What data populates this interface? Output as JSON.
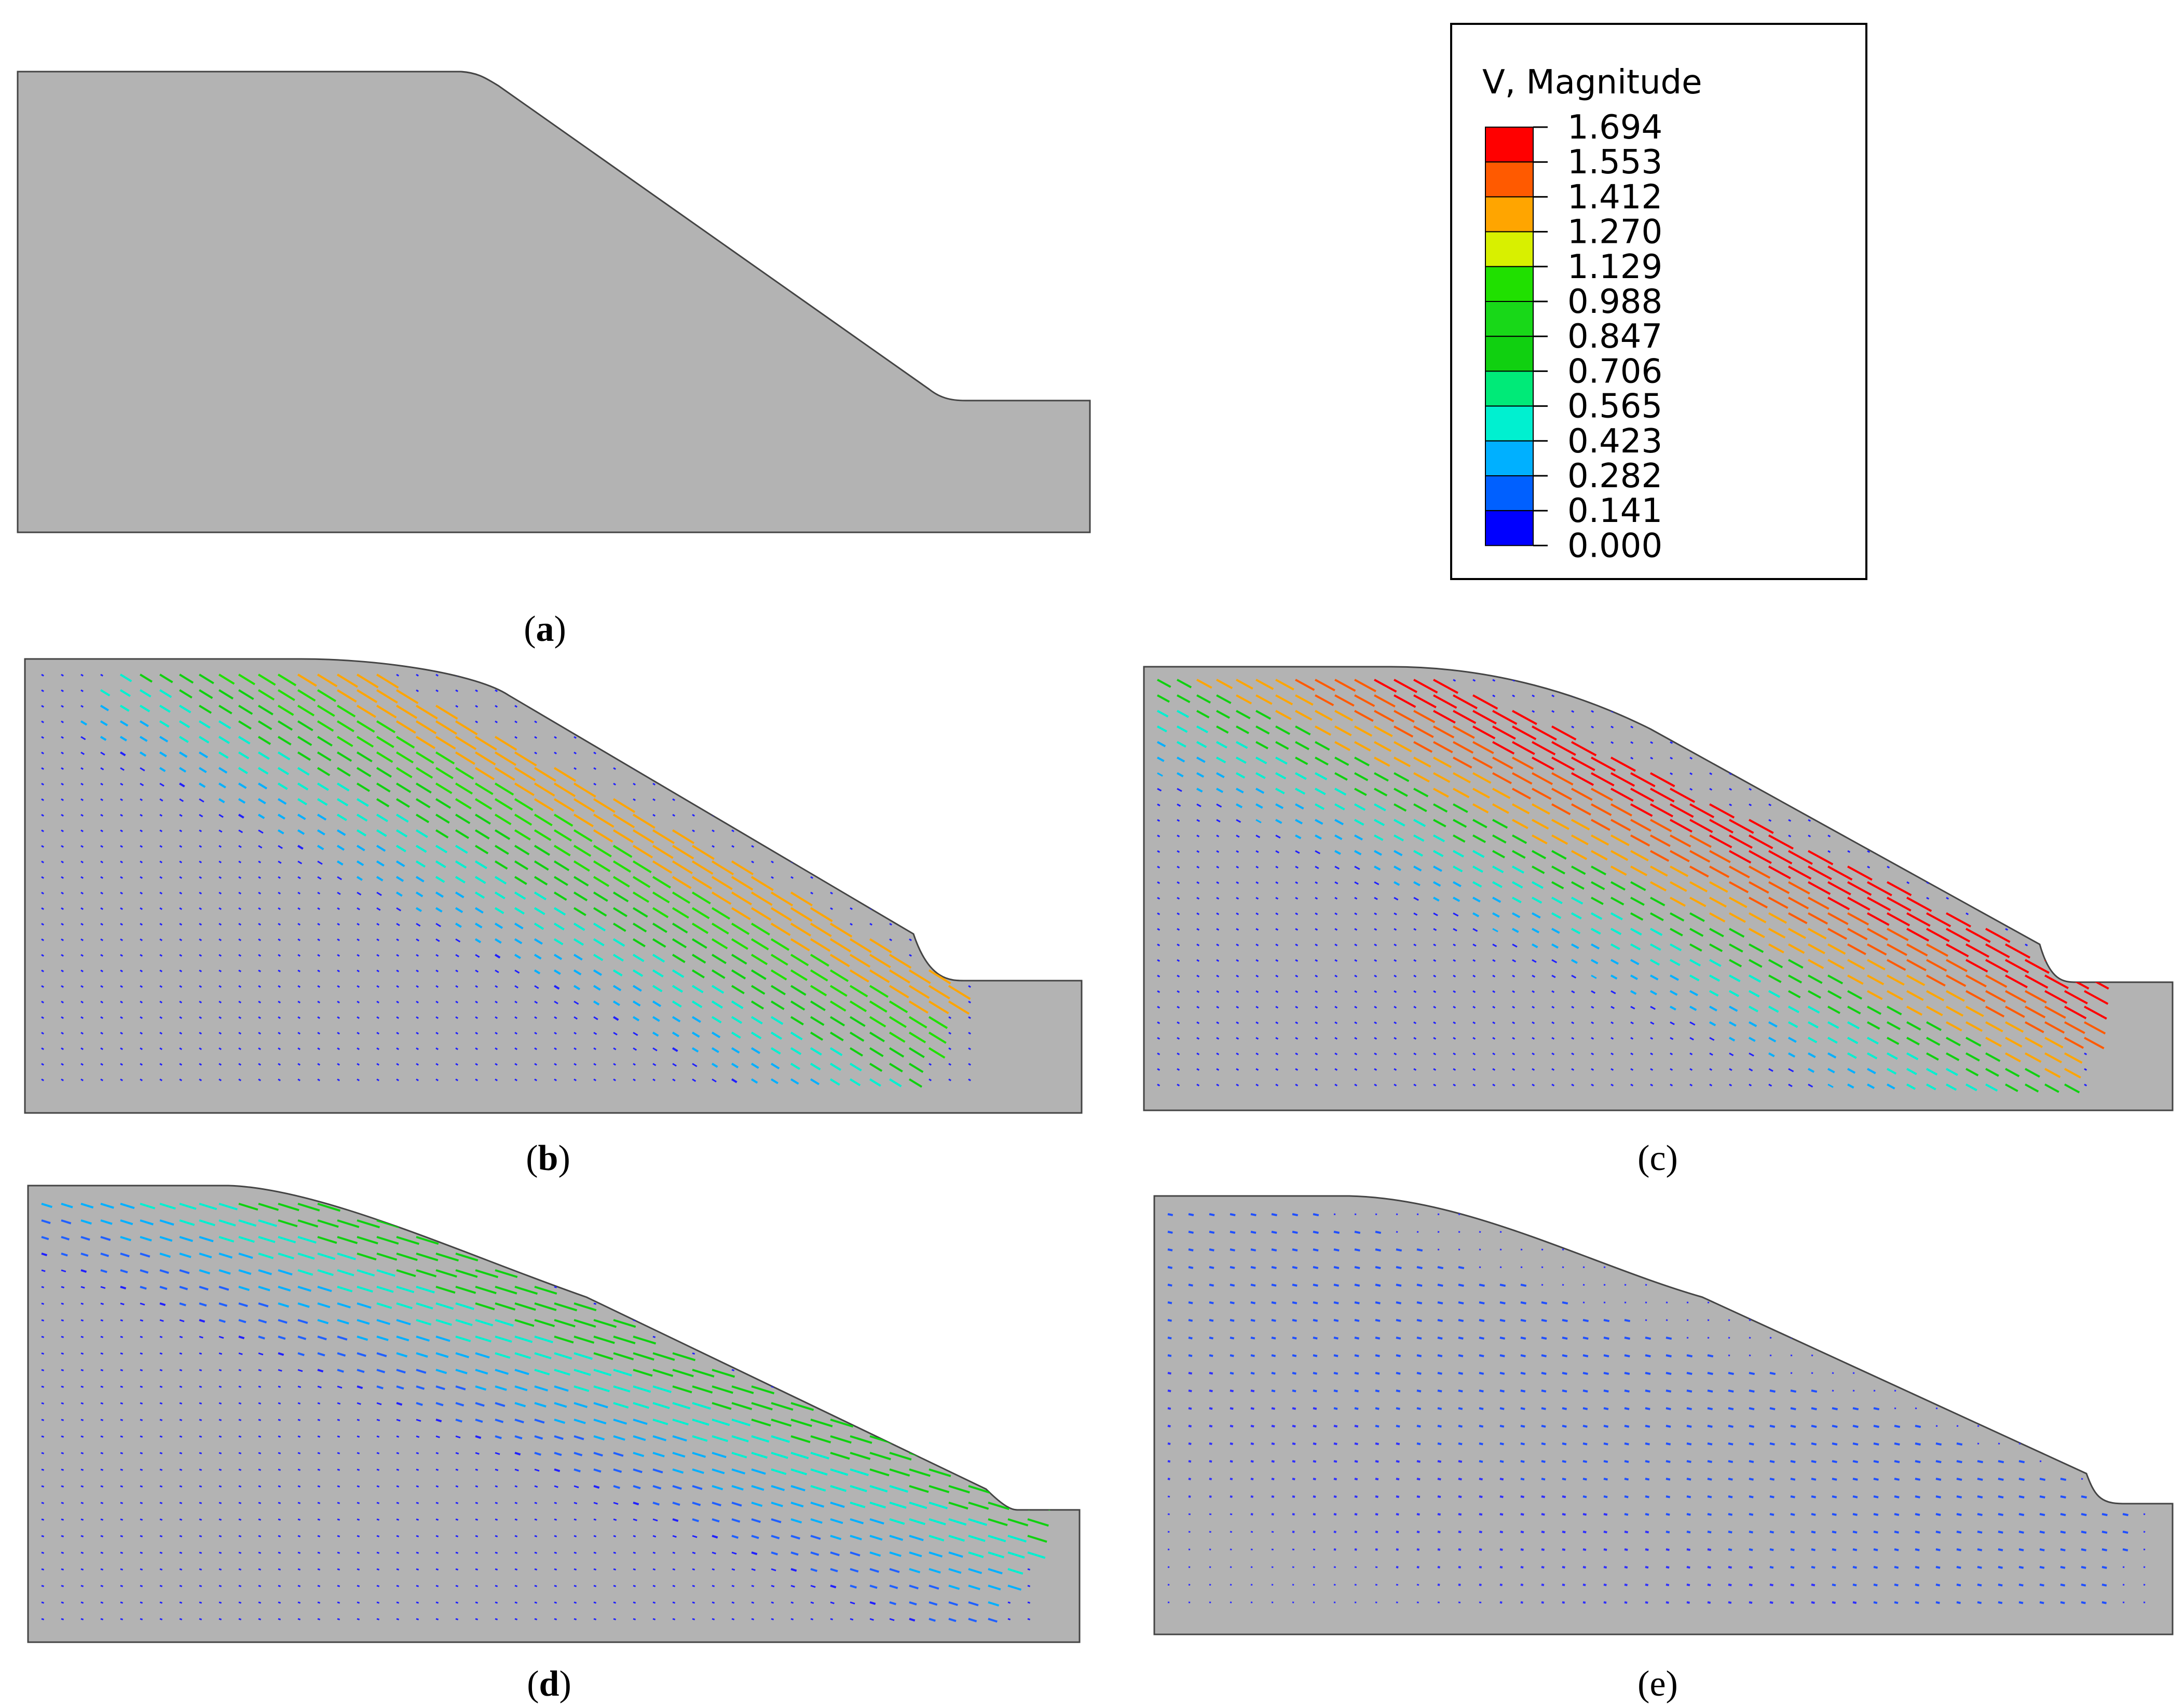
{
  "legend": {
    "title": "V, Magnitude",
    "ticks": [
      "1.694",
      "1.553",
      "1.412",
      "1.270",
      "1.129",
      "0.988",
      "0.847",
      "0.706",
      "0.565",
      "0.423",
      "0.282",
      "0.141",
      "0.000"
    ],
    "colors": [
      "#ff0000",
      "#ff5a00",
      "#ffa500",
      "#d8f000",
      "#20e000",
      "#18d818",
      "#10d010",
      "#00ea78",
      "#00f0d0",
      "#00b0ff",
      "#0060ff",
      "#0000ff"
    ]
  },
  "panels": [
    {
      "id": "a",
      "letter": "a",
      "vectors": "none"
    },
    {
      "id": "b",
      "letter": "b",
      "vectors": "orange-yellow-green-cyan"
    },
    {
      "id": "c",
      "letter": "c",
      "vectors": "red-orange-green-cyan"
    },
    {
      "id": "d",
      "letter": "d",
      "vectors": "green-cyan-blue"
    },
    {
      "id": "e",
      "letter": "e",
      "vectors": "blue"
    }
  ],
  "paren_open": "(",
  "paren_close": ")"
}
